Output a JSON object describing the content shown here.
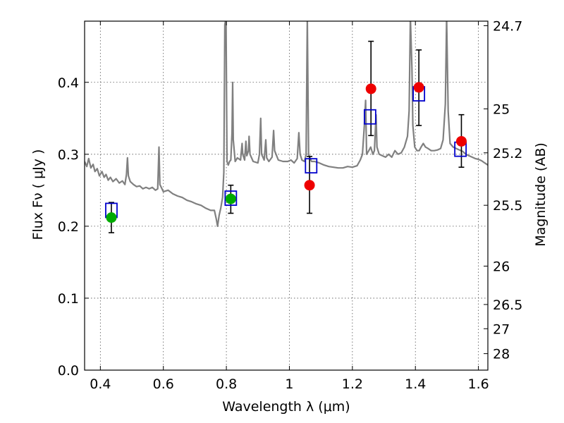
{
  "chart_data": {
    "type": "scatter",
    "xlabel": "Wavelength  λ (μm)",
    "ylabel": "Flux  Fν ( μJy )",
    "ylabel_right": "Magnitude (AB)",
    "xlim": [
      0.35,
      1.63
    ],
    "ylim": [
      0.0,
      0.485
    ],
    "grid": true,
    "x_ticks": [
      {
        "value": 0.4,
        "label": "0.4"
      },
      {
        "value": 0.6,
        "label": "0.6"
      },
      {
        "value": 0.8,
        "label": "0.8"
      },
      {
        "value": 1.0,
        "label": "1"
      },
      {
        "value": 1.2,
        "label": "1.2"
      },
      {
        "value": 1.4,
        "label": "1.4"
      },
      {
        "value": 1.6,
        "label": "1.6"
      }
    ],
    "y_ticks": [
      {
        "value": 0.0,
        "label": "0.0"
      },
      {
        "value": 0.1,
        "label": "0.1"
      },
      {
        "value": 0.2,
        "label": "0.2"
      },
      {
        "value": 0.3,
        "label": "0.3"
      },
      {
        "value": 0.4,
        "label": "0.4"
      }
    ],
    "right_ticks": [
      {
        "mag": 24.7,
        "label": "24.7"
      },
      {
        "mag": 25.0,
        "label": "25"
      },
      {
        "mag": 25.2,
        "label": "25.2"
      },
      {
        "mag": 25.5,
        "label": "25.5"
      },
      {
        "mag": 26.0,
        "label": "26"
      },
      {
        "mag": 26.5,
        "label": "26.5"
      },
      {
        "mag": 27.0,
        "label": "27"
      },
      {
        "mag": 28.0,
        "label": "28"
      }
    ],
    "colors": {
      "spectrum": "#808080",
      "model": "#0000cc",
      "observed_optical": "#00aa00",
      "observed_ir": "#ee0000",
      "errorbar": "#000000"
    },
    "model_photometry": [
      {
        "x": 0.435,
        "y": 0.222
      },
      {
        "x": 0.814,
        "y": 0.239
      },
      {
        "x": 1.069,
        "y": 0.284
      },
      {
        "x": 1.256,
        "y": 0.352
      },
      {
        "x": 1.411,
        "y": 0.384
      },
      {
        "x": 1.543,
        "y": 0.307
      }
    ],
    "observed_optical": [
      {
        "x": 0.435,
        "y": 0.212,
        "err_low": 0.021,
        "err_high": 0.021
      },
      {
        "x": 0.814,
        "y": 0.238,
        "err_low": 0.02,
        "err_high": 0.019
      }
    ],
    "observed_ir": [
      {
        "x": 1.064,
        "y": 0.257,
        "err_low": 0.039,
        "err_high": 0.04
      },
      {
        "x": 1.259,
        "y": 0.391,
        "err_low": 0.065,
        "err_high": 0.066
      },
      {
        "x": 1.411,
        "y": 0.393,
        "err_low": 0.053,
        "err_high": 0.052
      },
      {
        "x": 1.546,
        "y": 0.318,
        "err_low": 0.036,
        "err_high": 0.037
      }
    ],
    "spectrum": [
      [
        0.35,
        0.29
      ],
      [
        0.357,
        0.283
      ],
      [
        0.363,
        0.294
      ],
      [
        0.37,
        0.281
      ],
      [
        0.377,
        0.286
      ],
      [
        0.383,
        0.276
      ],
      [
        0.39,
        0.28
      ],
      [
        0.397,
        0.27
      ],
      [
        0.405,
        0.276
      ],
      [
        0.412,
        0.268
      ],
      [
        0.418,
        0.272
      ],
      [
        0.425,
        0.264
      ],
      [
        0.432,
        0.268
      ],
      [
        0.44,
        0.262
      ],
      [
        0.45,
        0.266
      ],
      [
        0.46,
        0.26
      ],
      [
        0.47,
        0.263
      ],
      [
        0.478,
        0.258
      ],
      [
        0.483,
        0.272
      ],
      [
        0.486,
        0.295
      ],
      [
        0.489,
        0.27
      ],
      [
        0.495,
        0.262
      ],
      [
        0.505,
        0.258
      ],
      [
        0.515,
        0.255
      ],
      [
        0.525,
        0.256
      ],
      [
        0.535,
        0.252
      ],
      [
        0.545,
        0.254
      ],
      [
        0.555,
        0.252
      ],
      [
        0.565,
        0.254
      ],
      [
        0.575,
        0.25
      ],
      [
        0.582,
        0.252
      ],
      [
        0.586,
        0.31
      ],
      [
        0.589,
        0.258
      ],
      [
        0.6,
        0.248
      ],
      [
        0.615,
        0.25
      ],
      [
        0.63,
        0.245
      ],
      [
        0.645,
        0.242
      ],
      [
        0.66,
        0.24
      ],
      [
        0.675,
        0.236
      ],
      [
        0.69,
        0.234
      ],
      [
        0.705,
        0.231
      ],
      [
        0.72,
        0.229
      ],
      [
        0.735,
        0.225
      ],
      [
        0.75,
        0.222
      ],
      [
        0.762,
        0.222
      ],
      [
        0.768,
        0.21
      ],
      [
        0.772,
        0.2
      ],
      [
        0.777,
        0.215
      ],
      [
        0.782,
        0.225
      ],
      [
        0.788,
        0.24
      ],
      [
        0.792,
        0.275
      ],
      [
        0.795,
        0.48
      ],
      [
        0.799,
        0.49
      ],
      [
        0.802,
        0.29
      ],
      [
        0.806,
        0.285
      ],
      [
        0.81,
        0.29
      ],
      [
        0.814,
        0.292
      ],
      [
        0.818,
        0.33
      ],
      [
        0.82,
        0.4
      ],
      [
        0.822,
        0.32
      ],
      [
        0.828,
        0.29
      ],
      [
        0.835,
        0.295
      ],
      [
        0.845,
        0.292
      ],
      [
        0.85,
        0.315
      ],
      [
        0.852,
        0.3
      ],
      [
        0.858,
        0.292
      ],
      [
        0.862,
        0.318
      ],
      [
        0.865,
        0.298
      ],
      [
        0.87,
        0.305
      ],
      [
        0.872,
        0.325
      ],
      [
        0.875,
        0.3
      ],
      [
        0.885,
        0.29
      ],
      [
        0.9,
        0.288
      ],
      [
        0.905,
        0.3
      ],
      [
        0.909,
        0.35
      ],
      [
        0.912,
        0.3
      ],
      [
        0.92,
        0.292
      ],
      [
        0.925,
        0.32
      ],
      [
        0.928,
        0.295
      ],
      [
        0.935,
        0.29
      ],
      [
        0.945,
        0.296
      ],
      [
        0.95,
        0.333
      ],
      [
        0.953,
        0.305
      ],
      [
        0.965,
        0.292
      ],
      [
        0.98,
        0.29
      ],
      [
        0.995,
        0.29
      ],
      [
        1.005,
        0.292
      ],
      [
        1.015,
        0.288
      ],
      [
        1.025,
        0.294
      ],
      [
        1.03,
        0.33
      ],
      [
        1.034,
        0.3
      ],
      [
        1.04,
        0.292
      ],
      [
        1.048,
        0.29
      ],
      [
        1.053,
        0.3
      ],
      [
        1.057,
        0.49
      ],
      [
        1.061,
        0.3
      ],
      [
        1.07,
        0.29
      ],
      [
        1.08,
        0.29
      ],
      [
        1.095,
        0.288
      ],
      [
        1.11,
        0.285
      ],
      [
        1.125,
        0.283
      ],
      [
        1.14,
        0.282
      ],
      [
        1.155,
        0.281
      ],
      [
        1.17,
        0.281
      ],
      [
        1.185,
        0.283
      ],
      [
        1.2,
        0.282
      ],
      [
        1.215,
        0.284
      ],
      [
        1.225,
        0.292
      ],
      [
        1.232,
        0.3
      ],
      [
        1.238,
        0.34
      ],
      [
        1.242,
        0.375
      ],
      [
        1.245,
        0.3
      ],
      [
        1.252,
        0.305
      ],
      [
        1.258,
        0.31
      ],
      [
        1.265,
        0.3
      ],
      [
        1.27,
        0.305
      ],
      [
        1.275,
        0.355
      ],
      [
        1.278,
        0.31
      ],
      [
        1.285,
        0.3
      ],
      [
        1.295,
        0.298
      ],
      [
        1.305,
        0.296
      ],
      [
        1.315,
        0.3
      ],
      [
        1.325,
        0.296
      ],
      [
        1.335,
        0.305
      ],
      [
        1.345,
        0.3
      ],
      [
        1.355,
        0.302
      ],
      [
        1.365,
        0.31
      ],
      [
        1.375,
        0.325
      ],
      [
        1.38,
        0.36
      ],
      [
        1.384,
        0.49
      ],
      [
        1.389,
        0.42
      ],
      [
        1.392,
        0.34
      ],
      [
        1.398,
        0.31
      ],
      [
        1.405,
        0.305
      ],
      [
        1.412,
        0.305
      ],
      [
        1.418,
        0.31
      ],
      [
        1.425,
        0.315
      ],
      [
        1.432,
        0.31
      ],
      [
        1.44,
        0.308
      ],
      [
        1.45,
        0.305
      ],
      [
        1.46,
        0.305
      ],
      [
        1.47,
        0.306
      ],
      [
        1.48,
        0.308
      ],
      [
        1.488,
        0.32
      ],
      [
        1.495,
        0.37
      ],
      [
        1.499,
        0.49
      ],
      [
        1.504,
        0.36
      ],
      [
        1.51,
        0.315
      ],
      [
        1.52,
        0.31
      ],
      [
        1.535,
        0.307
      ],
      [
        1.55,
        0.304
      ],
      [
        1.56,
        0.3
      ],
      [
        1.57,
        0.298
      ],
      [
        1.58,
        0.296
      ],
      [
        1.59,
        0.294
      ],
      [
        1.6,
        0.293
      ],
      [
        1.61,
        0.291
      ],
      [
        1.62,
        0.288
      ],
      [
        1.63,
        0.285
      ]
    ]
  }
}
